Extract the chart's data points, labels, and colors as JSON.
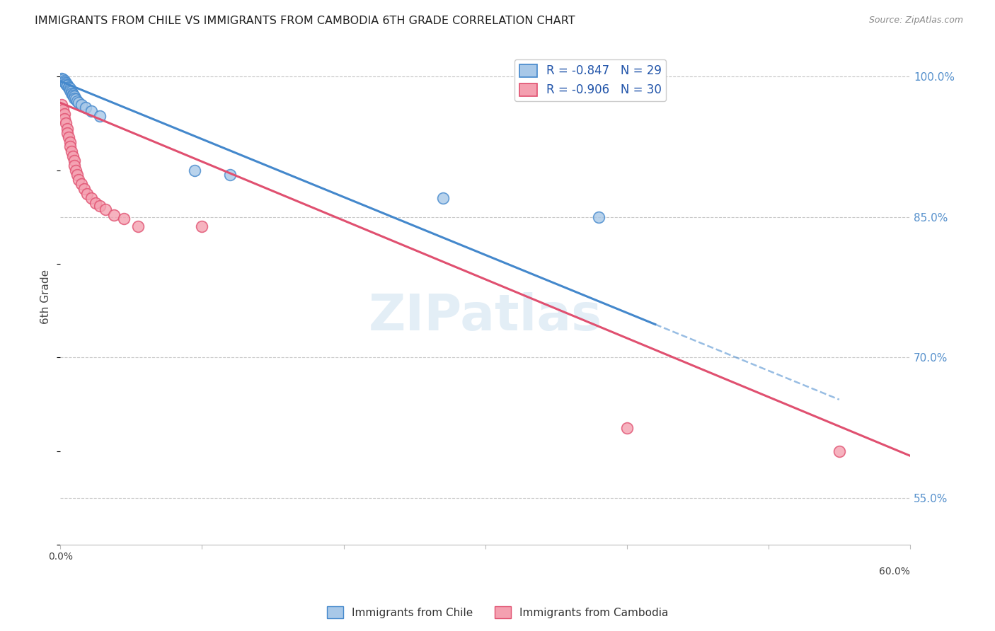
{
  "title": "IMMIGRANTS FROM CHILE VS IMMIGRANTS FROM CAMBODIA 6TH GRADE CORRELATION CHART",
  "source": "Source: ZipAtlas.com",
  "ylabel": "6th Grade",
  "xlim": [
    0.0,
    0.6
  ],
  "ylim": [
    0.5,
    1.03
  ],
  "yticks": [
    0.55,
    0.7,
    0.85,
    1.0
  ],
  "ytick_labels": [
    "55.0%",
    "70.0%",
    "85.0%",
    "100.0%"
  ],
  "chile_color": "#a8c8e8",
  "cambodia_color": "#f4a0b0",
  "chile_line_color": "#4488cc",
  "cambodia_line_color": "#e05070",
  "chile_R": -0.847,
  "chile_N": 29,
  "cambodia_R": -0.906,
  "cambodia_N": 30,
  "background_color": "#ffffff",
  "watermark": "ZIPatlas",
  "chile_line_x0": 0.0,
  "chile_line_y0": 0.995,
  "chile_line_x1": 0.55,
  "chile_line_y1": 0.655,
  "chile_line_solid_end": 0.42,
  "camb_line_x0": 0.0,
  "camb_line_y0": 0.972,
  "camb_line_x1": 0.6,
  "camb_line_y1": 0.595,
  "chile_scatter_x": [
    0.001,
    0.002,
    0.003,
    0.003,
    0.004,
    0.004,
    0.005,
    0.005,
    0.006,
    0.006,
    0.007,
    0.007,
    0.008,
    0.008,
    0.009,
    0.009,
    0.01,
    0.01,
    0.011,
    0.012,
    0.013,
    0.015,
    0.018,
    0.022,
    0.028,
    0.095,
    0.12,
    0.27,
    0.38
  ],
  "chile_scatter_y": [
    0.998,
    0.997,
    0.996,
    0.994,
    0.993,
    0.992,
    0.991,
    0.99,
    0.989,
    0.988,
    0.987,
    0.985,
    0.984,
    0.982,
    0.981,
    0.98,
    0.979,
    0.977,
    0.976,
    0.974,
    0.972,
    0.97,
    0.967,
    0.963,
    0.958,
    0.9,
    0.895,
    0.87,
    0.85
  ],
  "camb_scatter_x": [
    0.001,
    0.002,
    0.003,
    0.003,
    0.004,
    0.005,
    0.005,
    0.006,
    0.007,
    0.007,
    0.008,
    0.009,
    0.01,
    0.01,
    0.011,
    0.012,
    0.013,
    0.015,
    0.017,
    0.019,
    0.022,
    0.025,
    0.028,
    0.032,
    0.038,
    0.045,
    0.055,
    0.1,
    0.4,
    0.55
  ],
  "camb_scatter_y": [
    0.97,
    0.965,
    0.96,
    0.955,
    0.95,
    0.944,
    0.94,
    0.935,
    0.93,
    0.925,
    0.92,
    0.915,
    0.91,
    0.905,
    0.9,
    0.895,
    0.89,
    0.885,
    0.88,
    0.875,
    0.87,
    0.865,
    0.862,
    0.858,
    0.852,
    0.848,
    0.84,
    0.84,
    0.625,
    0.6
  ]
}
